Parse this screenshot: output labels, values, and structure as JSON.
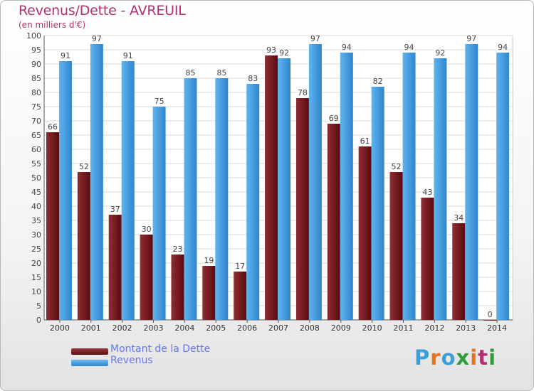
{
  "page": {
    "title": "Revenus/Dette - AVREUIL",
    "subtitle": "(en milliers d'€)"
  },
  "legend": {
    "dette_label": "Montant de la Dette",
    "revenus_label": "Revenus"
  },
  "logo": {
    "text": "Proxiti"
  },
  "colors": {
    "dette": "#7a1f24",
    "revenus": "#4ea5e6",
    "title": "#b03070",
    "legend_text": "#6677ee"
  },
  "chart_data": {
    "type": "bar",
    "title": "Revenus/Dette - AVREUIL",
    "subtitle": "(en milliers d'€)",
    "categories": [
      "2000",
      "2001",
      "2002",
      "2003",
      "2004",
      "2005",
      "2006",
      "2007",
      "2008",
      "2009",
      "2010",
      "2011",
      "2012",
      "2013",
      "2014"
    ],
    "series": [
      {
        "name": "Montant de la Dette",
        "values": [
          66,
          52,
          37,
          30,
          23,
          19,
          17,
          93,
          78,
          69,
          61,
          52,
          43,
          34,
          0
        ]
      },
      {
        "name": "Revenus",
        "values": [
          91,
          97,
          91,
          75,
          85,
          85,
          83,
          92,
          97,
          94,
          82,
          94,
          92,
          97,
          94
        ]
      }
    ],
    "ylim": [
      0,
      100
    ],
    "ytick_step": 5,
    "grid": true,
    "legend_position": "bottom-left"
  }
}
